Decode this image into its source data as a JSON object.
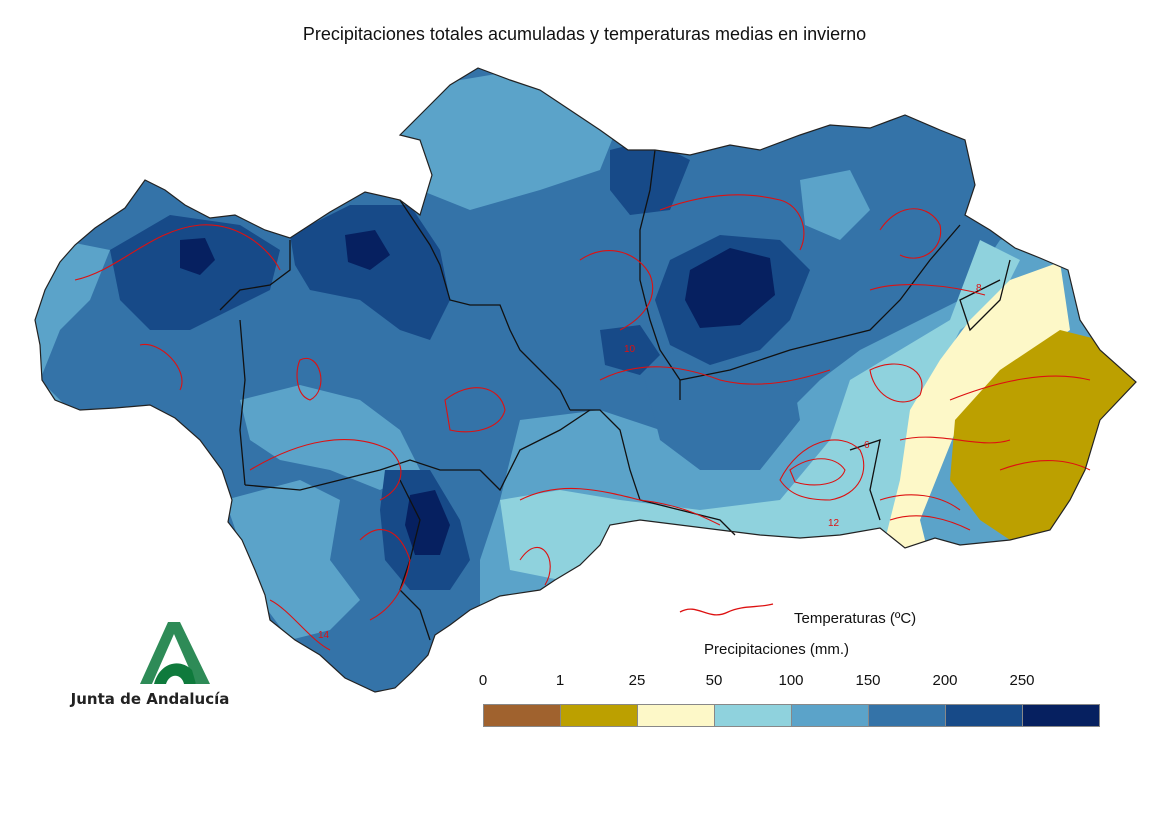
{
  "title": "Precipitaciones totales acumuladas y temperaturas medias en invierno",
  "logo": {
    "text": "Junta de Andalucía",
    "colors": [
      "#2e8b57",
      "#0f7a3c"
    ]
  },
  "legend": {
    "temperature_label": "Temperaturas (ºC)",
    "temperature_color": "#dd1111",
    "precipitation_title": "Precipitaciones (mm.)",
    "ticks": [
      "0",
      "1",
      "25",
      "50",
      "100",
      "150",
      "200",
      "250"
    ],
    "classes": [
      {
        "range": "0-1",
        "color": "#a0622e"
      },
      {
        "range": "1-25",
        "color": "#bca000"
      },
      {
        "range": "25-50",
        "color": "#fdf8c8"
      },
      {
        "range": "50-100",
        "color": "#8fd2dd"
      },
      {
        "range": "100-150",
        "color": "#5ba3c9"
      },
      {
        "range": "150-200",
        "color": "#3473a8"
      },
      {
        "range": "200-250",
        "color": "#174a88"
      },
      {
        "range": ">250",
        "color": "#062060"
      }
    ]
  },
  "isotherm_labels": [
    "8",
    "10",
    "6",
    "12",
    "14"
  ],
  "colors": {
    "province_border": "#111111",
    "background": "#ffffff"
  }
}
